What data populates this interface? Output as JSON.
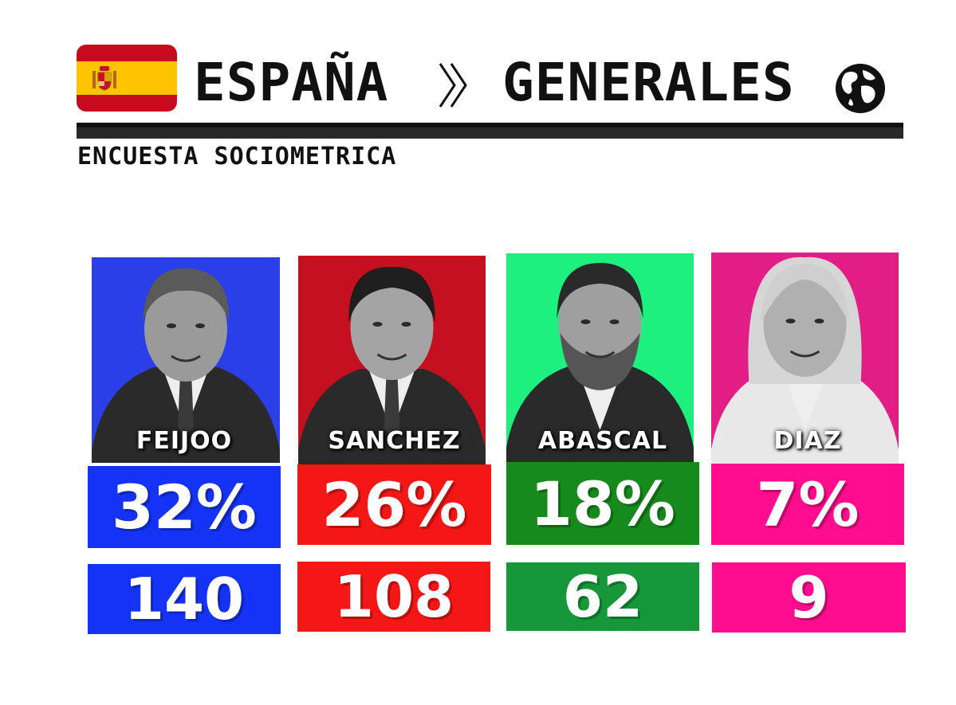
{
  "header": {
    "country": "ESPAÑA",
    "separator_icon": "double-chevron-right-icon",
    "election": "GENERALES",
    "flag_icon": "spain-flag-icon",
    "globe_icon": "globe-icon"
  },
  "subtitle": "ENCUESTA SOCIOMETRICA",
  "chart_data": {
    "type": "table",
    "categories": [
      "FEIJOO",
      "SANCHEZ",
      "ABASCAL",
      "DIAZ"
    ],
    "series": [
      {
        "values": [
          32,
          26,
          18,
          7
        ]
      },
      {
        "values": [
          140,
          108,
          62,
          9
        ]
      }
    ],
    "display": {
      "percent": [
        "32%",
        "26%",
        "18%",
        "7%"
      ],
      "seats": [
        "140",
        "108",
        "62",
        "9"
      ]
    },
    "colors": {
      "photo_bg": [
        "#2b3fe8",
        "#c4101f",
        "#1ef07f",
        "#e21d85"
      ],
      "percent_box": [
        "#1433f5",
        "#f51616",
        "#168a1c",
        "#ff0d8e"
      ],
      "seats_box": [
        "#1433f5",
        "#f51616",
        "#16983a",
        "#ff0d8e"
      ]
    }
  }
}
